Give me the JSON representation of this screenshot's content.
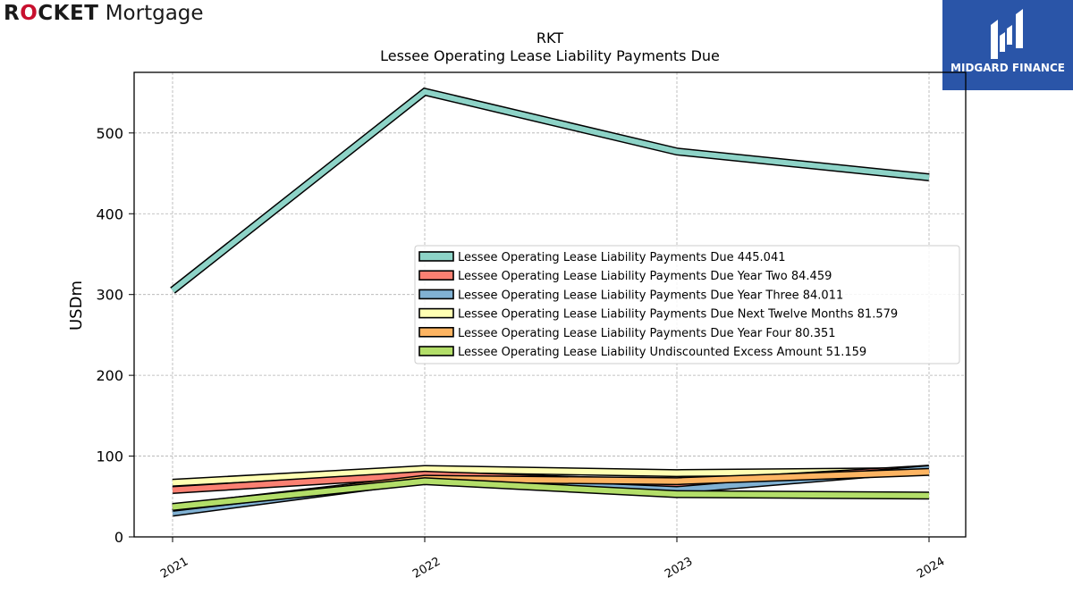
{
  "logos": {
    "left": {
      "part1": "R",
      "part2": "O",
      "part3": "CKET",
      "part4": " Mortgage",
      "accent": "#c8102e"
    },
    "right": {
      "text": "MIDGARD FINANCE",
      "background": "#2a55a8"
    }
  },
  "chart_data": {
    "type": "line",
    "title": "RKT",
    "subtitle": "Lessee Operating Lease Liability Payments Due",
    "xlabel": "",
    "ylabel": "USDm",
    "categories": [
      "2021",
      "2022",
      "2023",
      "2024"
    ],
    "ylim": [
      0,
      575
    ],
    "yticks": [
      "0",
      "100",
      "200",
      "300",
      "400",
      "500"
    ],
    "grid": true,
    "legend_position": "center-right",
    "series": [
      {
        "name": "Lessee Operating Lease Liability Payments Due",
        "legend_label": "Lessee Operating Lease Liability Payments Due  445.041",
        "color": "#8dd3c7",
        "values": [
          305,
          551,
          477,
          445.041
        ]
      },
      {
        "name": "Lessee Operating Lease Liability Payments Due Year Two",
        "legend_label": "Lessee Operating Lease Liability Payments Due Year Two  84.459",
        "color": "#fb8072",
        "values": [
          58,
          77,
          66,
          84.459
        ]
      },
      {
        "name": "Lessee Operating Lease Liability Payments Due Year Three",
        "legend_label": "Lessee Operating Lease Liability Payments Due Year Three  84.011",
        "color": "#80b1d3",
        "values": [
          30,
          71,
          58,
          84.011
        ]
      },
      {
        "name": "Lessee Operating Lease Liability Payments Due Next Twelve Months",
        "legend_label": "Lessee Operating Lease Liability Payments Due Next Twelve Months  81.579",
        "color": "#ffffb3",
        "values": [
          67,
          84,
          79,
          81.579
        ]
      },
      {
        "name": "Lessee Operating Lease Liability Payments Due Year Four",
        "legend_label": "Lessee Operating Lease Liability Payments Due Year Four  80.351",
        "color": "#fdb462",
        "values": [
          36,
          72,
          69,
          80.351
        ]
      },
      {
        "name": "Lessee Operating Lease Liability Undiscounted Excess Amount",
        "legend_label": "Lessee Operating Lease Liability Undiscounted Excess Amount  51.159",
        "color": "#b3de69",
        "values": [
          37,
          69,
          53,
          51.159
        ]
      }
    ]
  }
}
